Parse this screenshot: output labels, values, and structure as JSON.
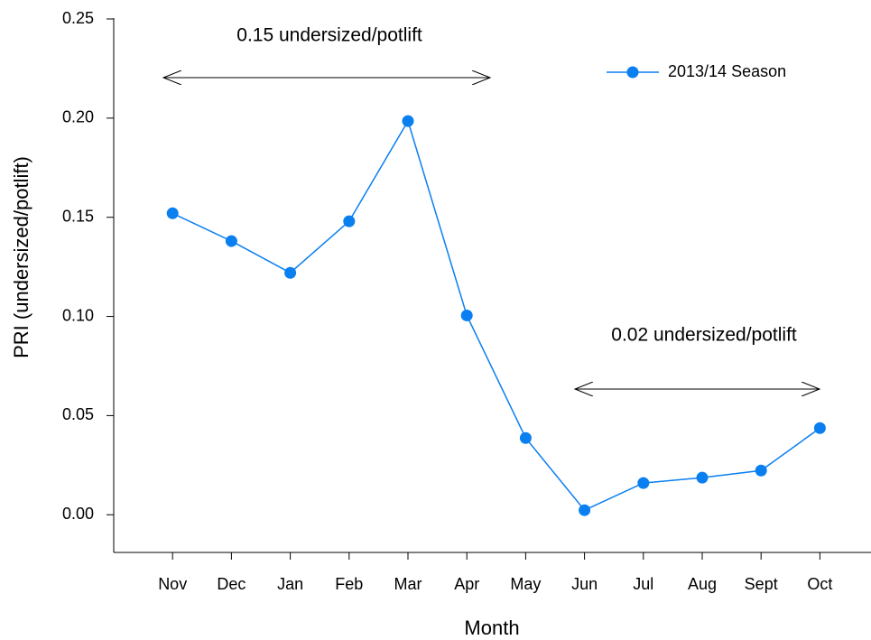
{
  "chart_data": {
    "type": "line",
    "categories": [
      "Nov",
      "Dec",
      "Jan",
      "Feb",
      "Mar",
      "Apr",
      "May",
      "Jun",
      "Jul",
      "Aug",
      "Sept",
      "Oct"
    ],
    "series": [
      {
        "name": "2013/14 Season",
        "color": "#0a7ff0",
        "values": [
          0.152,
          0.138,
          0.122,
          0.148,
          0.1985,
          0.1005,
          0.0387,
          0.0023,
          0.016,
          0.0187,
          0.0223,
          0.0437
        ]
      }
    ],
    "ylim": [
      -0.019,
      0.25
    ],
    "yticks": [
      {
        "value": 0,
        "label": "0.00"
      },
      {
        "value": 0.05,
        "label": "0.05"
      },
      {
        "value": 0.1,
        "label": "0.10"
      },
      {
        "value": 0.15,
        "label": "0.15"
      },
      {
        "value": 0.2,
        "label": "0.20"
      },
      {
        "value": 0.25,
        "label": "0.25"
      }
    ],
    "x_label": "Month",
    "y_label": "PRI (undersized/potlift)",
    "annotations": [
      "0.15 undersized/potlift",
      "0.02 undersized/potlift"
    ],
    "legend": "top-right",
    "grid": false
  }
}
